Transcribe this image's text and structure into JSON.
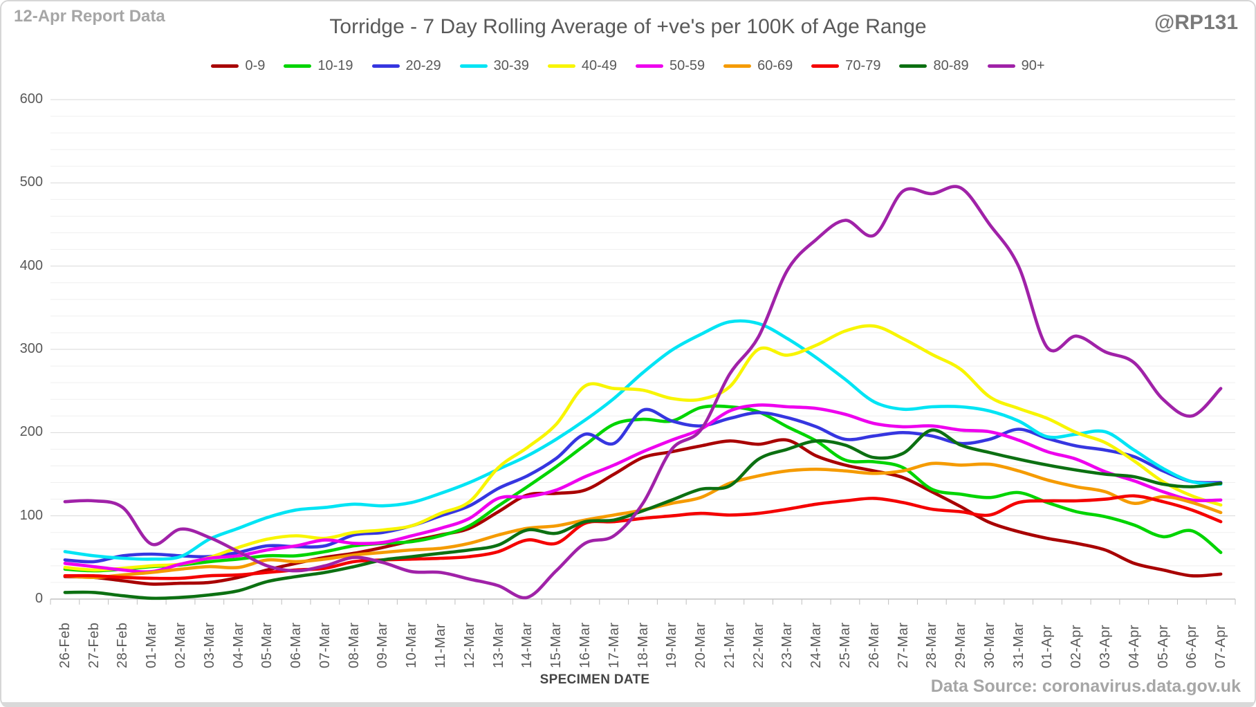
{
  "header": {
    "report_label": "12-Apr Report Data",
    "title": "Torridge - 7 Day Rolling Average of +ve's per 100K of Age Range",
    "watermark": "@RP131"
  },
  "footer": {
    "xaxis_title": "SPECIMEN DATE",
    "source": "Data Source: coronavirus.data.gov.uk"
  },
  "colors": {
    "text_primary": "#595959",
    "text_muted": "#a6a6a6",
    "gridline_major": "#d8d8d8",
    "gridline_minor": "#efefef",
    "axis_line": "#c2c2c2",
    "tick": "#bfbfbf",
    "background": "#ffffff"
  },
  "chart_data": {
    "type": "line",
    "title": "Torridge - 7 Day Rolling Average of +ve's per 100K of Age Range",
    "xlabel": "SPECIMEN DATE",
    "ylabel": "",
    "ylim": [
      0,
      600
    ],
    "ytick_interval": 100,
    "minor_grid_interval": 20,
    "ytick_labels": [
      "0",
      "100",
      "200",
      "300",
      "400",
      "500",
      "600"
    ],
    "grid": true,
    "legend_position": "top",
    "categories": [
      "26-Feb",
      "27-Feb",
      "28-Feb",
      "01-Mar",
      "02-Mar",
      "03-Mar",
      "04-Mar",
      "05-Mar",
      "06-Mar",
      "07-Mar",
      "08-Mar",
      "09-Mar",
      "10-Mar",
      "11-Mar",
      "12-Mar",
      "13-Mar",
      "14-Mar",
      "15-Mar",
      "16-Mar",
      "17-Mar",
      "18-Mar",
      "19-Mar",
      "20-Mar",
      "21-Mar",
      "22-Mar",
      "23-Mar",
      "24-Mar",
      "25-Mar",
      "26-Mar",
      "27-Mar",
      "28-Mar",
      "29-Mar",
      "30-Mar",
      "31-Mar",
      "01-Apr",
      "02-Apr",
      "03-Apr",
      "04-Apr",
      "05-Apr",
      "06-Apr",
      "07-Apr"
    ],
    "series": [
      {
        "name": "0-9",
        "color": "#a80000",
        "values": [
          27,
          26,
          22,
          18,
          19,
          20,
          26,
          35,
          43,
          50,
          55,
          62,
          70,
          77,
          85,
          105,
          125,
          127,
          131,
          150,
          170,
          177,
          184,
          190,
          186,
          191,
          172,
          161,
          154,
          146,
          129,
          111,
          92,
          81,
          73,
          67,
          59,
          43,
          35,
          28,
          30
        ]
      },
      {
        "name": "10-19",
        "color": "#00d400",
        "values": [
          36,
          34,
          36,
          39,
          41,
          45,
          48,
          52,
          52,
          57,
          64,
          67,
          69,
          76,
          88,
          112,
          135,
          159,
          185,
          210,
          216,
          214,
          230,
          231,
          225,
          207,
          190,
          167,
          165,
          158,
          132,
          126,
          122,
          128,
          116,
          105,
          99,
          89,
          75,
          82,
          56
        ]
      },
      {
        "name": "20-29",
        "color": "#3636e0",
        "values": [
          47,
          45,
          52,
          54,
          52,
          51,
          56,
          64,
          63,
          64,
          77,
          80,
          88,
          100,
          112,
          133,
          148,
          169,
          198,
          187,
          227,
          214,
          208,
          217,
          224,
          218,
          207,
          192,
          196,
          200,
          196,
          187,
          192,
          204,
          193,
          184,
          179,
          171,
          154,
          141,
          140
        ]
      },
      {
        "name": "30-39",
        "color": "#00e4f4",
        "values": [
          57,
          52,
          49,
          48,
          51,
          72,
          85,
          98,
          107,
          110,
          114,
          112,
          116,
          127,
          140,
          156,
          172,
          192,
          215,
          241,
          272,
          299,
          318,
          333,
          331,
          313,
          290,
          264,
          237,
          228,
          231,
          231,
          226,
          214,
          195,
          198,
          201,
          179,
          157,
          141,
          138
        ]
      },
      {
        "name": "40-49",
        "color": "#f8f500",
        "values": [
          38,
          35,
          37,
          40,
          42,
          50,
          62,
          72,
          76,
          73,
          80,
          83,
          88,
          103,
          117,
          158,
          182,
          210,
          256,
          253,
          251,
          241,
          240,
          255,
          300,
          293,
          305,
          322,
          328,
          313,
          294,
          276,
          243,
          229,
          217,
          200,
          188,
          166,
          141,
          124,
          113
        ]
      },
      {
        "name": "50-59",
        "color": "#ee00ee",
        "values": [
          43,
          39,
          35,
          33,
          42,
          49,
          52,
          59,
          64,
          71,
          67,
          68,
          76,
          85,
          97,
          121,
          123,
          131,
          147,
          161,
          177,
          191,
          204,
          226,
          233,
          231,
          229,
          222,
          211,
          207,
          208,
          203,
          201,
          191,
          177,
          168,
          153,
          142,
          129,
          119,
          119
        ]
      },
      {
        "name": "60-69",
        "color": "#f59b00",
        "values": [
          28,
          26,
          29,
          32,
          36,
          39,
          38,
          47,
          45,
          48,
          53,
          56,
          59,
          61,
          67,
          77,
          85,
          88,
          95,
          101,
          107,
          115,
          122,
          139,
          148,
          154,
          156,
          154,
          151,
          154,
          163,
          161,
          162,
          154,
          143,
          135,
          129,
          115,
          123,
          116,
          104
        ]
      },
      {
        "name": "70-79",
        "color": "#f40000",
        "values": [
          28,
          28,
          26,
          25,
          25,
          28,
          29,
          32,
          35,
          37,
          45,
          47,
          48,
          49,
          51,
          57,
          71,
          67,
          91,
          93,
          97,
          100,
          103,
          101,
          103,
          108,
          114,
          118,
          121,
          116,
          108,
          105,
          101,
          116,
          118,
          118,
          120,
          124,
          117,
          107,
          93
        ]
      },
      {
        "name": "80-89",
        "color": "#0c7012",
        "values": [
          8,
          8,
          4,
          1,
          2,
          5,
          10,
          21,
          27,
          32,
          39,
          47,
          51,
          55,
          59,
          65,
          83,
          79,
          93,
          95,
          106,
          119,
          132,
          136,
          168,
          180,
          190,
          185,
          170,
          175,
          203,
          185,
          176,
          168,
          161,
          155,
          150,
          147,
          138,
          135,
          139
        ]
      },
      {
        "name": "90+",
        "color": "#a022a8",
        "values": [
          117,
          118,
          110,
          66,
          84,
          74,
          57,
          40,
          34,
          40,
          50,
          44,
          33,
          32,
          24,
          16,
          2,
          34,
          67,
          76,
          115,
          180,
          203,
          270,
          315,
          395,
          432,
          455,
          437,
          490,
          487,
          494,
          450,
          400,
          302,
          316,
          297,
          284,
          240,
          220,
          253
        ]
      }
    ]
  }
}
